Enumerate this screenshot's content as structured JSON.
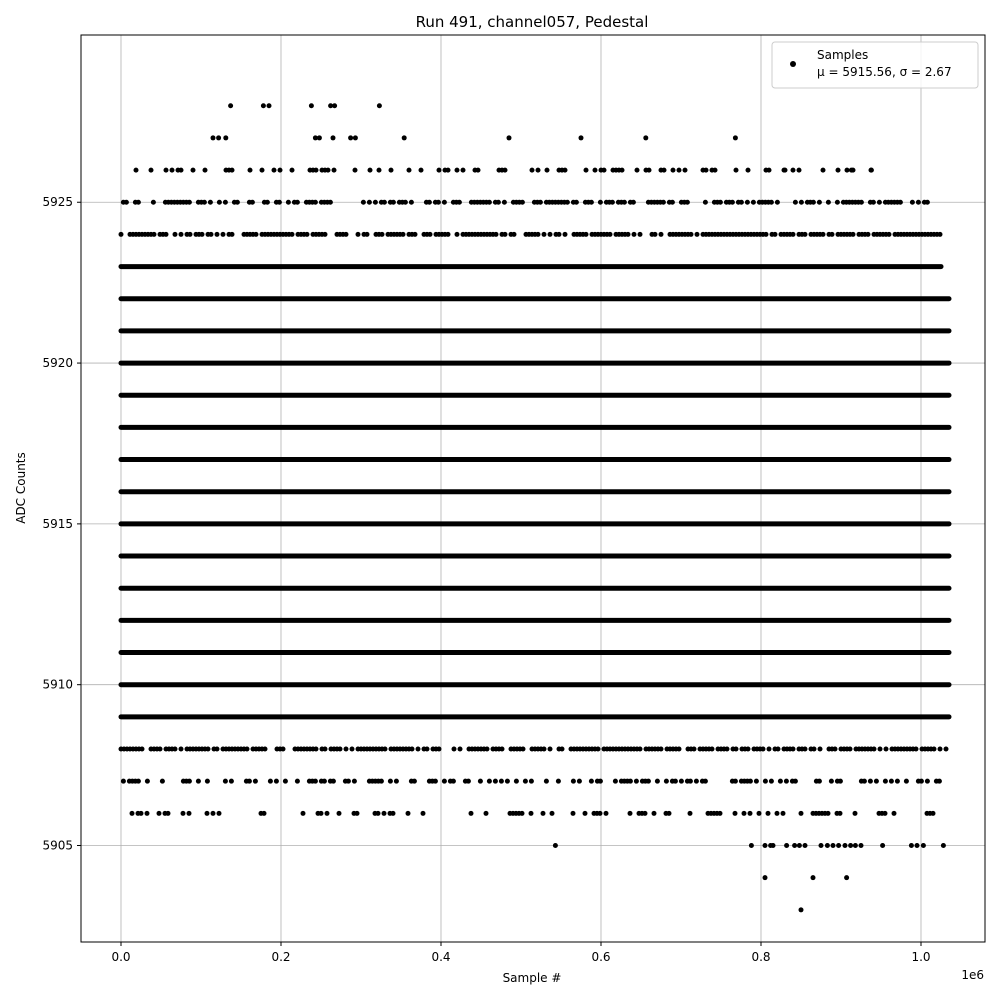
{
  "chart_data": {
    "type": "scatter",
    "title": "Run 491, channel057, Pedestal",
    "xlabel": "Sample #",
    "ylabel": "ADC Counts",
    "x_offset_label": "1e6",
    "xlim": [
      -0.05,
      1.08
    ],
    "ylim": [
      5902,
      5930.2
    ],
    "xticks": [
      0.0,
      0.2,
      0.4,
      0.6,
      0.8,
      1.0
    ],
    "xtick_labels": [
      "0.0",
      "0.2",
      "0.4",
      "0.6",
      "0.8",
      "1.0"
    ],
    "yticks": [
      5905,
      5910,
      5915,
      5920,
      5925
    ],
    "ytick_labels": [
      "5905",
      "5910",
      "5915",
      "5920",
      "5925"
    ],
    "grid": true,
    "marker_color": "#000000",
    "legend": {
      "placement": "top-right",
      "series_name": "Samples",
      "stats_line": "μ = 5915.56, σ = 2.67"
    },
    "sample_range": [
      0,
      1.035
    ],
    "solid_rows": [
      {
        "y": 5909,
        "x_start": 0.0,
        "x_end": 1.035
      },
      {
        "y": 5910,
        "x_start": 0.0,
        "x_end": 1.035
      },
      {
        "y": 5911,
        "x_start": 0.0,
        "x_end": 1.035
      },
      {
        "y": 5912,
        "x_start": 0.0,
        "x_end": 1.035
      },
      {
        "y": 5913,
        "x_start": 0.0,
        "x_end": 1.035
      },
      {
        "y": 5914,
        "x_start": 0.0,
        "x_end": 1.035
      },
      {
        "y": 5915,
        "x_start": 0.0,
        "x_end": 1.035
      },
      {
        "y": 5916,
        "x_start": 0.0,
        "x_end": 1.035
      },
      {
        "y": 5917,
        "x_start": 0.0,
        "x_end": 1.035
      },
      {
        "y": 5918,
        "x_start": 0.0,
        "x_end": 1.035
      },
      {
        "y": 5919,
        "x_start": 0.0,
        "x_end": 1.035
      },
      {
        "y": 5920,
        "x_start": 0.0,
        "x_end": 1.035
      },
      {
        "y": 5921,
        "x_start": 0.0,
        "x_end": 1.035
      },
      {
        "y": 5922,
        "x_start": 0.0,
        "x_end": 1.035
      },
      {
        "y": 5923,
        "x_start": 0.0,
        "x_end": 1.025
      }
    ],
    "sparse_rows": [
      {
        "y": 5926,
        "x_start": 0.015,
        "x_end": 0.94,
        "density": 0.35
      },
      {
        "y": 5925,
        "x_start": 0.003,
        "x_end": 1.01,
        "density": 0.55
      },
      {
        "y": 5924,
        "x_start": 0.0,
        "x_end": 1.03,
        "density": 0.75
      },
      {
        "y": 5908,
        "x_start": 0.0,
        "x_end": 1.035,
        "density": 0.75
      },
      {
        "y": 5907,
        "x_start": 0.003,
        "x_end": 1.035,
        "density": 0.4
      },
      {
        "y": 5906,
        "x_start": 0.01,
        "x_end": 1.035,
        "density": 0.3
      }
    ],
    "points": [
      {
        "x": 0.137,
        "y": 5928
      },
      {
        "x": 0.178,
        "y": 5928
      },
      {
        "x": 0.185,
        "y": 5928
      },
      {
        "x": 0.238,
        "y": 5928
      },
      {
        "x": 0.262,
        "y": 5928
      },
      {
        "x": 0.267,
        "y": 5928
      },
      {
        "x": 0.323,
        "y": 5928
      },
      {
        "x": 0.115,
        "y": 5927
      },
      {
        "x": 0.122,
        "y": 5927
      },
      {
        "x": 0.131,
        "y": 5927
      },
      {
        "x": 0.243,
        "y": 5927
      },
      {
        "x": 0.248,
        "y": 5927
      },
      {
        "x": 0.265,
        "y": 5927
      },
      {
        "x": 0.287,
        "y": 5927
      },
      {
        "x": 0.293,
        "y": 5927
      },
      {
        "x": 0.354,
        "y": 5927
      },
      {
        "x": 0.485,
        "y": 5927
      },
      {
        "x": 0.575,
        "y": 5927
      },
      {
        "x": 0.656,
        "y": 5927
      },
      {
        "x": 0.768,
        "y": 5927
      },
      {
        "x": 0.83,
        "y": 5926
      },
      {
        "x": 0.913,
        "y": 5926
      },
      {
        "x": 0.938,
        "y": 5926
      },
      {
        "x": 0.543,
        "y": 5905
      },
      {
        "x": 0.788,
        "y": 5905
      },
      {
        "x": 0.805,
        "y": 5905
      },
      {
        "x": 0.812,
        "y": 5905
      },
      {
        "x": 0.815,
        "y": 5905
      },
      {
        "x": 0.832,
        "y": 5905
      },
      {
        "x": 0.842,
        "y": 5905
      },
      {
        "x": 0.848,
        "y": 5905
      },
      {
        "x": 0.855,
        "y": 5905
      },
      {
        "x": 0.875,
        "y": 5905
      },
      {
        "x": 0.883,
        "y": 5905
      },
      {
        "x": 0.89,
        "y": 5905
      },
      {
        "x": 0.897,
        "y": 5905
      },
      {
        "x": 0.905,
        "y": 5905
      },
      {
        "x": 0.912,
        "y": 5905
      },
      {
        "x": 0.918,
        "y": 5905
      },
      {
        "x": 0.925,
        "y": 5905
      },
      {
        "x": 0.952,
        "y": 5905
      },
      {
        "x": 0.988,
        "y": 5905
      },
      {
        "x": 0.995,
        "y": 5905
      },
      {
        "x": 1.003,
        "y": 5905
      },
      {
        "x": 1.028,
        "y": 5905
      },
      {
        "x": 0.805,
        "y": 5904
      },
      {
        "x": 0.865,
        "y": 5904
      },
      {
        "x": 0.907,
        "y": 5904
      },
      {
        "x": 0.85,
        "y": 5903
      }
    ]
  }
}
